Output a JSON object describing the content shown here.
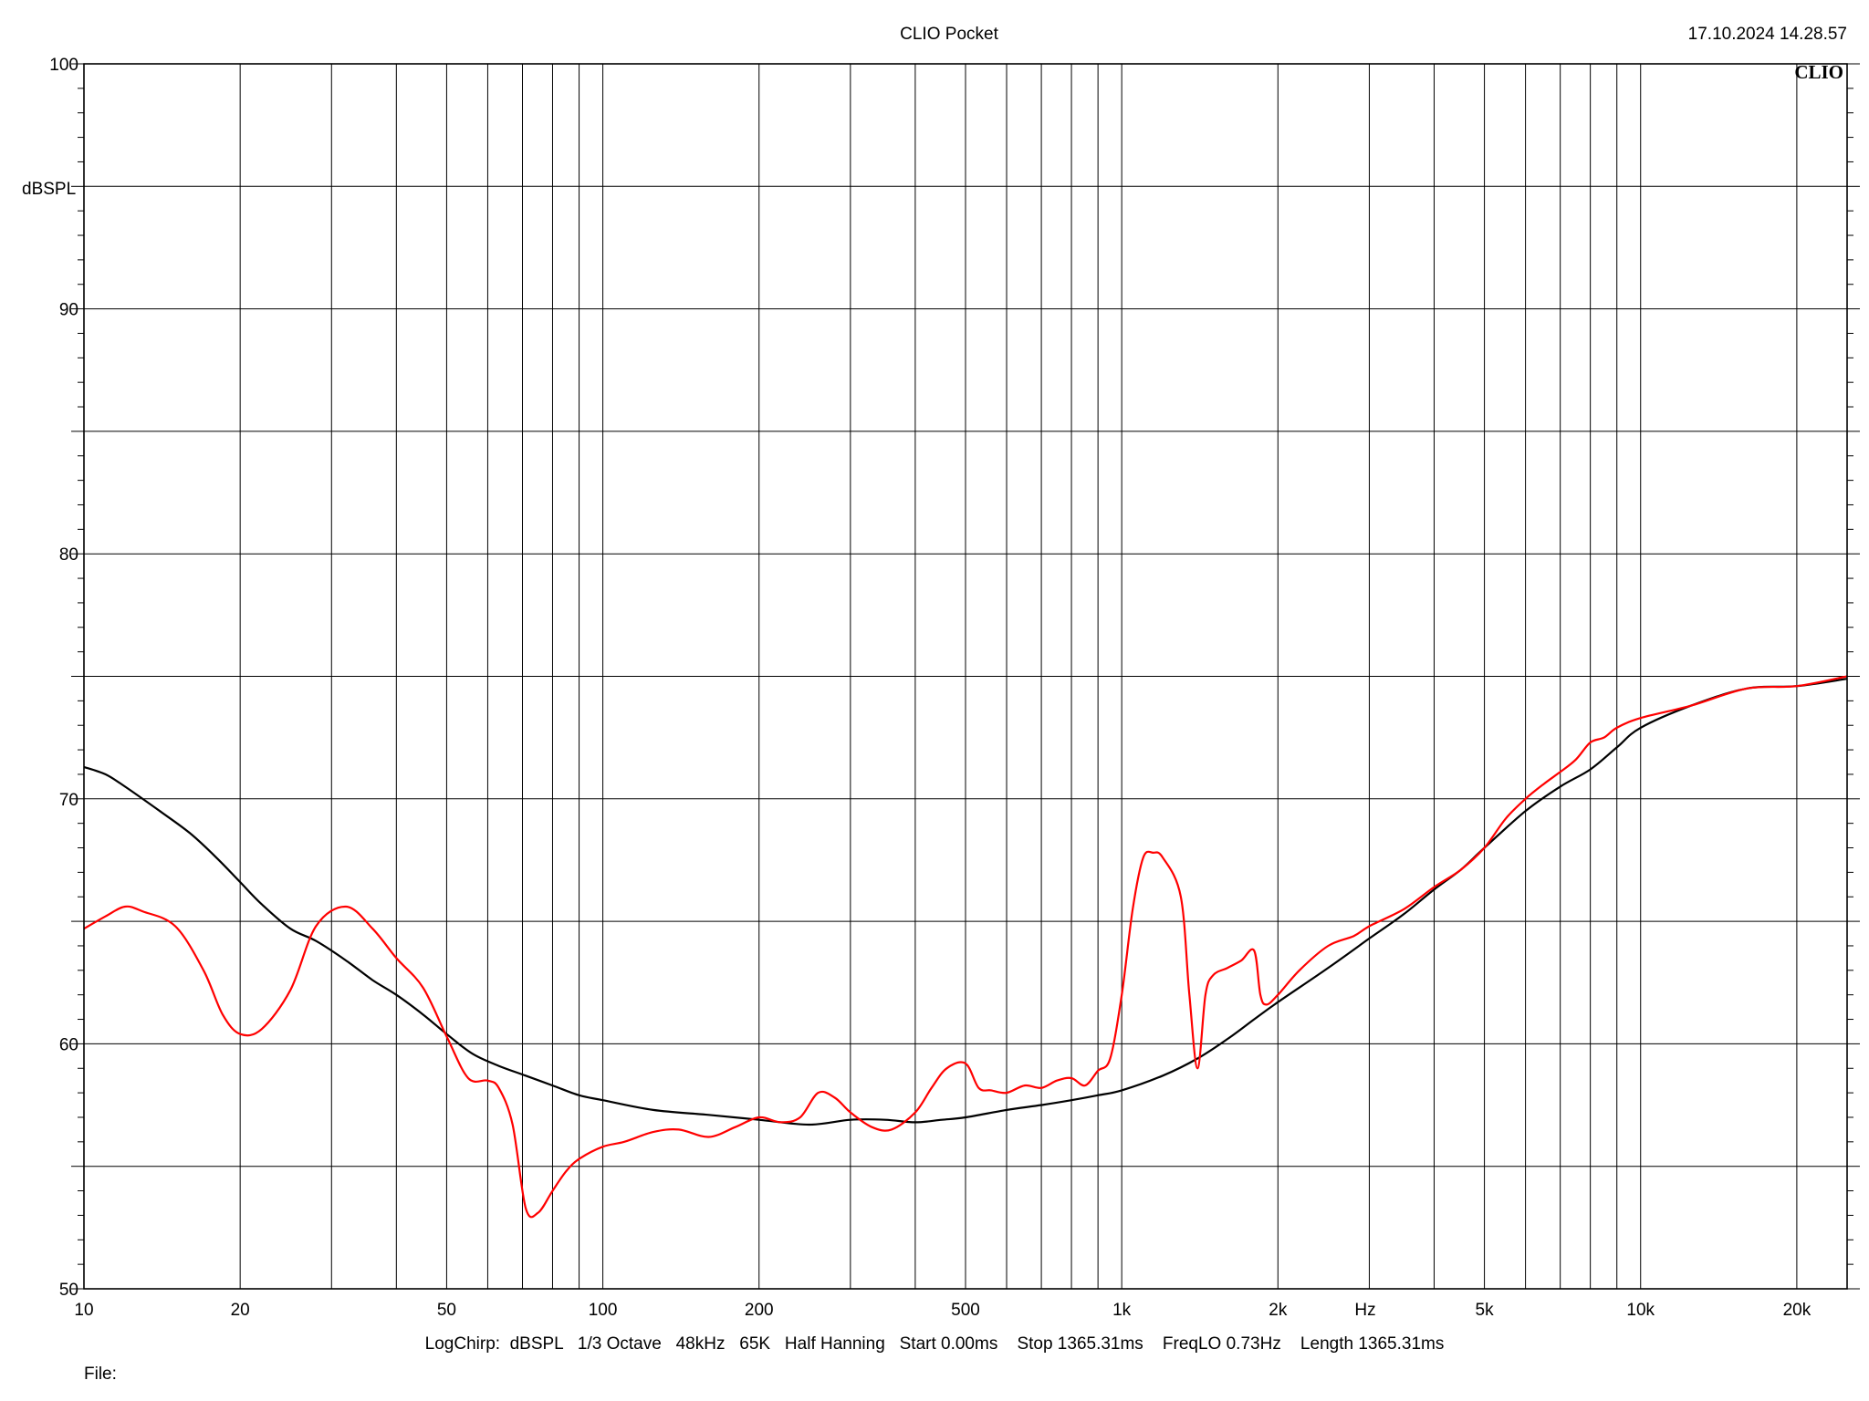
{
  "header": {
    "title": "CLIO Pocket",
    "timestamp": "17.10.2024 14.28.57",
    "logo": "CLIO"
  },
  "footer": {
    "settings": "LogChirp:  dBSPL   1/3 Octave   48kHz   65K   Half Hanning   Start 0.00ms    Stop 1365.31ms    FreqLO 0.73Hz    Length 1365.31ms",
    "file_label": "File:"
  },
  "chart_data": {
    "type": "line",
    "title": "",
    "xlabel": "Hz",
    "ylabel": "dBSPL",
    "xscale": "log",
    "xlim": [
      10,
      25000
    ],
    "ylim": [
      50,
      100
    ],
    "x_ticks": [
      {
        "value": 10,
        "label": "10"
      },
      {
        "value": 20,
        "label": "20"
      },
      {
        "value": 50,
        "label": "50"
      },
      {
        "value": 100,
        "label": "100"
      },
      {
        "value": 200,
        "label": "200"
      },
      {
        "value": 500,
        "label": "500"
      },
      {
        "value": 1000,
        "label": "1k"
      },
      {
        "value": 2000,
        "label": "2k"
      },
      {
        "value": 5000,
        "label": "5k"
      },
      {
        "value": 10000,
        "label": "10k"
      },
      {
        "value": 20000,
        "label": "20k"
      }
    ],
    "y_ticks": [
      {
        "value": 50,
        "label": "50"
      },
      {
        "value": 60,
        "label": "60"
      },
      {
        "value": 70,
        "label": "70"
      },
      {
        "value": 80,
        "label": "80"
      },
      {
        "value": 90,
        "label": "90"
      },
      {
        "value": 100,
        "label": "100"
      }
    ],
    "grid": true,
    "series": [
      {
        "color": "#000000",
        "x": [
          10,
          11,
          12,
          14,
          16,
          18,
          20,
          22,
          25,
          28,
          32,
          36,
          40,
          45,
          50,
          56,
          63,
          71,
          80,
          90,
          100,
          125,
          160,
          200,
          250,
          300,
          350,
          400,
          450,
          500,
          600,
          700,
          800,
          900,
          1000,
          1200,
          1400,
          1600,
          1800,
          2000,
          2500,
          3000,
          3500,
          4000,
          4500,
          5000,
          6000,
          7000,
          8000,
          9000,
          10000,
          12500,
          16000,
          20000,
          25000
        ],
        "y": [
          71.3,
          71.0,
          70.5,
          69.5,
          68.6,
          67.6,
          66.6,
          65.7,
          64.7,
          64.2,
          63.4,
          62.6,
          62.0,
          61.2,
          60.4,
          59.6,
          59.1,
          58.7,
          58.3,
          57.9,
          57.7,
          57.3,
          57.1,
          56.9,
          56.7,
          56.9,
          56.9,
          56.8,
          56.9,
          57.0,
          57.3,
          57.5,
          57.7,
          57.9,
          58.1,
          58.7,
          59.4,
          60.2,
          61.0,
          61.7,
          63.1,
          64.3,
          65.3,
          66.3,
          67.1,
          68.0,
          69.5,
          70.5,
          71.2,
          72.1,
          72.9,
          73.8,
          74.5,
          74.6,
          74.9
        ]
      },
      {
        "color": "#ff0000",
        "x": [
          10,
          11,
          12,
          13,
          15,
          17,
          18.5,
          20,
          22,
          25,
          28,
          32,
          36,
          40,
          45,
          50,
          55,
          60,
          63,
          67,
          71,
          75,
          80,
          85,
          90,
          100,
          110,
          125,
          140,
          160,
          180,
          200,
          220,
          240,
          260,
          280,
          300,
          330,
          360,
          400,
          430,
          460,
          500,
          530,
          560,
          600,
          650,
          700,
          750,
          800,
          850,
          900,
          950,
          1000,
          1050,
          1100,
          1150,
          1200,
          1300,
          1350,
          1400,
          1450,
          1500,
          1600,
          1700,
          1800,
          1850,
          1900,
          2000,
          2200,
          2500,
          2800,
          3000,
          3500,
          4000,
          4500,
          5000,
          5500,
          6000,
          6500,
          7000,
          7500,
          8000,
          8500,
          9000,
          10000,
          12500,
          16000,
          20000,
          25000
        ],
        "y": [
          64.7,
          65.2,
          65.6,
          65.4,
          64.8,
          63.0,
          61.2,
          60.4,
          60.6,
          62.2,
          64.8,
          65.6,
          64.7,
          63.5,
          62.3,
          60.3,
          58.6,
          58.5,
          58.2,
          56.7,
          53.3,
          53.1,
          54.0,
          54.8,
          55.3,
          55.8,
          56.0,
          56.4,
          56.5,
          56.2,
          56.6,
          57.0,
          56.8,
          57.0,
          58.0,
          57.8,
          57.2,
          56.6,
          56.5,
          57.2,
          58.2,
          59.0,
          59.2,
          58.2,
          58.1,
          58.0,
          58.3,
          58.2,
          58.5,
          58.6,
          58.3,
          58.9,
          59.4,
          62.0,
          65.5,
          67.6,
          67.8,
          67.6,
          66.0,
          62.0,
          59.0,
          62.0,
          62.8,
          63.1,
          63.4,
          63.8,
          62.0,
          61.6,
          62.0,
          63.0,
          64.0,
          64.4,
          64.8,
          65.5,
          66.4,
          67.1,
          68.0,
          69.2,
          70.0,
          70.6,
          71.1,
          71.6,
          72.3,
          72.5,
          72.9,
          73.3,
          73.8,
          74.5,
          74.6,
          75.0
        ]
      }
    ]
  }
}
